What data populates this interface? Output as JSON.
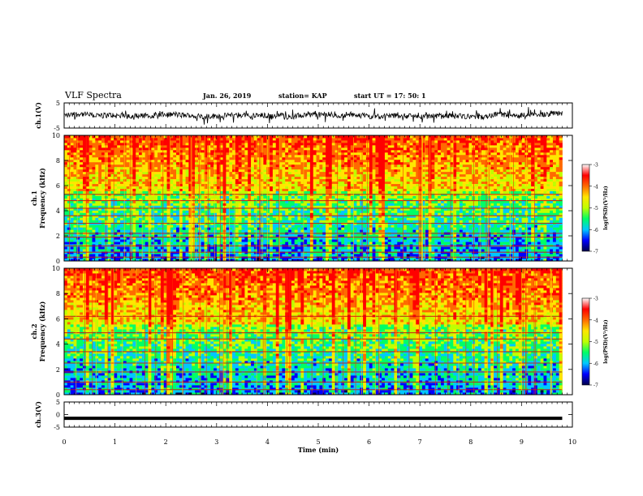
{
  "header": {
    "title": "VLF Spectra",
    "date": "Jan. 26, 2019",
    "station": "station= KAP",
    "start": "start UT =  17: 50: 1"
  },
  "chart_data": [
    {
      "type": "line",
      "name": "ch1-waveform",
      "ylabel": "ch.1(V)",
      "ylim": [
        -5,
        5
      ],
      "y_ticks": [
        "5",
        "-5"
      ],
      "xlim": [
        0,
        10
      ],
      "x_end": 9.8,
      "level": 0,
      "noise_amplitude": 2.2
    },
    {
      "type": "heatmap",
      "name": "ch1-spectrogram",
      "ylabel": "ch.1\nFrequency (kHz)",
      "ylabel_line1": "ch.1",
      "ylabel_line2": "Frequency (kHz)",
      "ylim": [
        0,
        10
      ],
      "y_ticks": [
        "0",
        "2",
        "4",
        "6",
        "8",
        "10"
      ],
      "xlim": [
        0,
        10
      ],
      "x_end": 9.8,
      "colorbar": {
        "label": "log(PSD)(V²/Hz)",
        "range": [
          -7,
          -3
        ],
        "ticks": [
          "-3",
          "-4",
          "-5",
          "-6",
          "-7"
        ]
      },
      "bands_khz": [
        0.3,
        0.7,
        1.2,
        1.9,
        2.2,
        3.0,
        3.6,
        4.2,
        4.8,
        5.3
      ]
    },
    {
      "type": "heatmap",
      "name": "ch2-spectrogram",
      "ylabel": "ch.2\nFrequency (kHz)",
      "ylabel_line1": "ch.2",
      "ylabel_line2": "Frequency (kHz)",
      "ylim": [
        0,
        10
      ],
      "y_ticks": [
        "0",
        "2",
        "4",
        "6",
        "8",
        "10"
      ],
      "xlim": [
        0,
        10
      ],
      "x_end": 9.8,
      "colorbar": {
        "label": "log(PSD)(V²/Hz)",
        "range": [
          -7,
          -3
        ],
        "ticks": [
          "-3",
          "-4",
          "-5",
          "-6",
          "-7"
        ]
      },
      "bands_khz": [
        0.4,
        1.0,
        1.8,
        2.5,
        3.4,
        4.4,
        4.9,
        6.2
      ]
    },
    {
      "type": "line",
      "name": "ch3-waveform",
      "ylabel": "ch.3(V)",
      "ylim": [
        -5,
        5
      ],
      "y_ticks": [
        "5",
        "0",
        "-5"
      ],
      "xlim": [
        0,
        10
      ],
      "x_end": 9.8,
      "level": -1.5,
      "noise_amplitude": 0
    }
  ],
  "x_axis": {
    "label": "Time (min)",
    "ticks": [
      "0",
      "1",
      "2",
      "3",
      "4",
      "5",
      "6",
      "7",
      "8",
      "9",
      "10"
    ]
  },
  "colors": {
    "scale": [
      "#00004a",
      "#0000ff",
      "#00c8ff",
      "#00ff66",
      "#bfff00",
      "#ffe600",
      "#ff6a00",
      "#ff0000",
      "#ffffff"
    ]
  }
}
